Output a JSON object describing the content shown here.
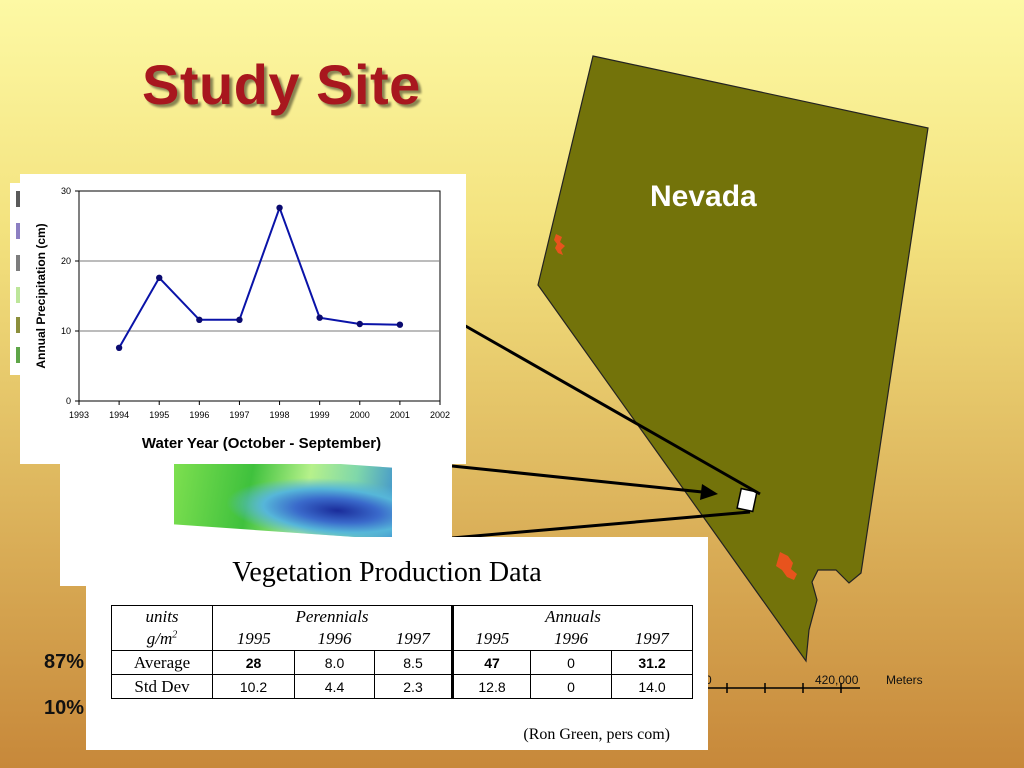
{
  "slide": {
    "title": "Study Site",
    "map_label": "Nevada",
    "scale_labels": [
      "0",
      "420,000",
      "Meters"
    ],
    "percent_texts": [
      "87%",
      "10%"
    ],
    "legend_swatches": [
      "#5a5a5a",
      "#8c7fc2",
      "#7d7d7d",
      "#bde69a",
      "#8c8f3c",
      "#5ea548"
    ],
    "colors": {
      "title": "#a8171e",
      "state_fill": "#73730a",
      "highlight": "#e8531d"
    }
  },
  "chart_data": {
    "type": "line",
    "title": "",
    "xlabel": "Water Year (October - September)",
    "ylabel": "Annual Precipitation (cm)",
    "x_ticks": [
      "1993",
      "1994",
      "1995",
      "1996",
      "1997",
      "1998",
      "1999",
      "2000",
      "2001",
      "2002"
    ],
    "y_ticks": [
      "0",
      "10",
      "20",
      "30"
    ],
    "xlim": [
      1993,
      2002
    ],
    "ylim": [
      0,
      30
    ],
    "grid": "horizontal",
    "series": [
      {
        "x": [
          1994,
          1995,
          1996,
          1997,
          1998,
          1999,
          2000,
          2001
        ],
        "y": [
          7.6,
          17.6,
          11.6,
          11.6,
          27.6,
          11.9,
          11.0,
          10.9
        ],
        "color": "#0a13a8"
      }
    ]
  },
  "veg_table": {
    "title": "Vegetation Production Data",
    "units_label": "units",
    "units_value": "g/m",
    "units_sup": "2",
    "groups": [
      "Perennials",
      "Annuals"
    ],
    "years": [
      "1995",
      "1996",
      "1997",
      "1995",
      "1996",
      "1997"
    ],
    "rows": [
      {
        "label": "Average",
        "values": [
          "28",
          "8.0",
          "8.5",
          "47",
          "0",
          "31.2"
        ]
      },
      {
        "label": "Std Dev",
        "values": [
          "10.2",
          "4.4",
          "2.3",
          "12.8",
          "0",
          "14.0"
        ]
      }
    ],
    "source": "(Ron Green, pers com)"
  }
}
